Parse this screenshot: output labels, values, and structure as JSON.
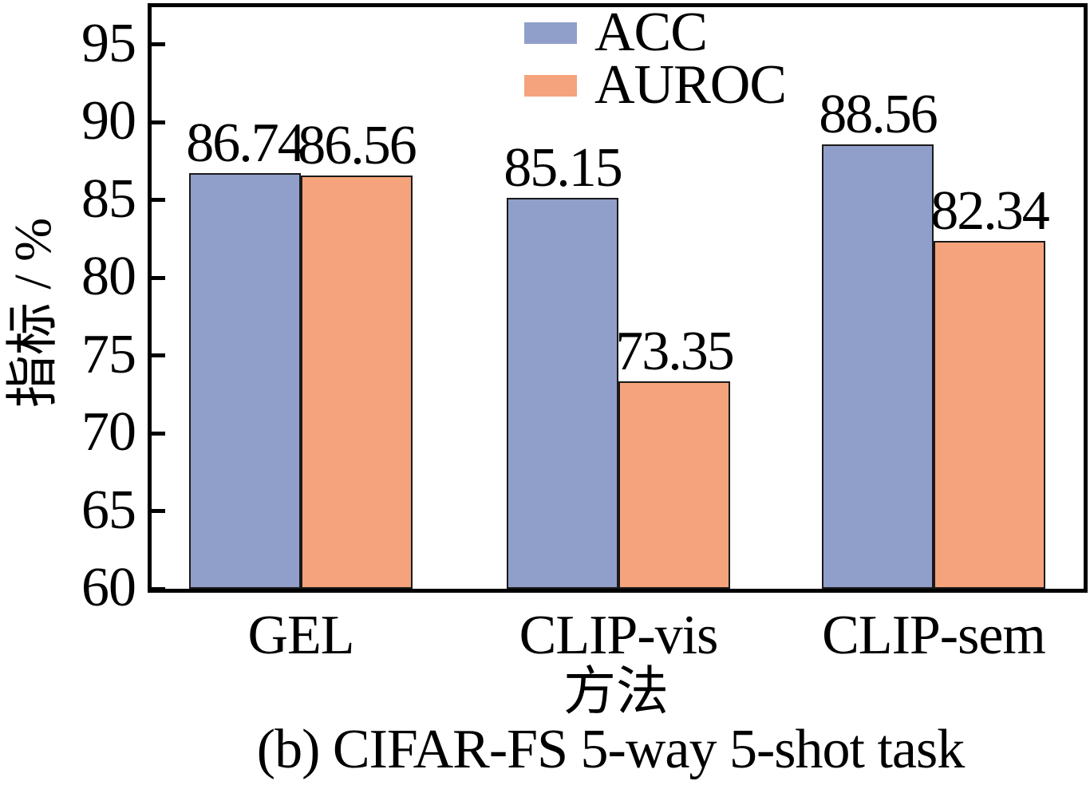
{
  "chart_data": {
    "type": "bar",
    "title": "",
    "categories": [
      "GEL",
      "CLIP-vis",
      "CLIP-sem"
    ],
    "series": [
      {
        "name": "ACC",
        "color": "#909FC9",
        "values": [
          86.74,
          85.15,
          88.56
        ]
      },
      {
        "name": "AUROC",
        "color": "#F4A37C",
        "values": [
          86.56,
          73.35,
          82.34
        ]
      }
    ],
    "xlabel": "方法",
    "ylabel": "指标 / %",
    "yticks": [
      60,
      65,
      70,
      75,
      80,
      85,
      90,
      95
    ],
    "ylim": [
      60,
      97.4
    ],
    "grid": false,
    "legend_position": "top-center",
    "value_labels_shown": true,
    "caption": "(b) CIFAR-FS 5-way 5-shot task",
    "bar_edge_color": "#1a1a1a",
    "axis_color": "#000000"
  }
}
